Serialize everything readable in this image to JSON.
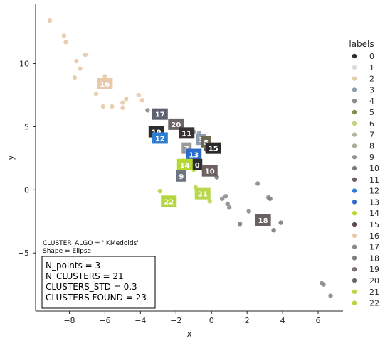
{
  "chart_data": {
    "type": "scatter",
    "xlabel": "x",
    "ylabel": "y",
    "xlim": [
      -9.9,
      7.4
    ],
    "ylim": [
      -9.6,
      14.7
    ],
    "xticks": [
      -8,
      -6,
      -4,
      -2,
      0,
      2,
      4,
      6
    ],
    "yticks": [
      -5,
      0,
      5,
      10
    ],
    "tick_labels_x": [
      "−8",
      "−6",
      "−4",
      "−2",
      "0",
      "2",
      "4",
      "6"
    ],
    "tick_labels_y": [
      "−5",
      "0",
      "5",
      "10"
    ],
    "grid": false,
    "legend": {
      "title": "labels",
      "placement": "right",
      "entries": [
        "0",
        "1",
        "2",
        "3",
        "4",
        "5",
        "6",
        "7",
        "8",
        "9",
        "10",
        "11",
        "12",
        "13",
        "14",
        "15",
        "16",
        "17",
        "18",
        "19",
        "20",
        "21",
        "22"
      ],
      "colors": [
        "#2d2d2d",
        "#dcdcdc",
        "#e6cfa6",
        "#8e9bb0",
        "#8c8c8c",
        "#8a8650",
        "#c3d27e",
        "#b2b2a6",
        "#a8ad98",
        "#8e9a8e",
        "#7a7a7a",
        "#6c6060",
        "#2f7dd1",
        "#2b6cc8",
        "#b5d930",
        "#5a4a4a",
        "#e8c9a8",
        "#8a8a8a",
        "#7e7e7e",
        "#7b6f6f",
        "#6e6666",
        "#b9d74a",
        "#b3d63e"
      ]
    },
    "points": [
      {
        "x": -9.1,
        "y": 13.4,
        "label": "16"
      },
      {
        "x": -8.3,
        "y": 12.2,
        "label": "16"
      },
      {
        "x": -8.2,
        "y": 11.7,
        "label": "16"
      },
      {
        "x": -7.1,
        "y": 10.7,
        "label": "16"
      },
      {
        "x": -7.6,
        "y": 10.2,
        "label": "16"
      },
      {
        "x": -7.4,
        "y": 9.6,
        "label": "16"
      },
      {
        "x": -7.7,
        "y": 8.9,
        "label": "16"
      },
      {
        "x": -6.0,
        "y": 9.0,
        "label": "16"
      },
      {
        "x": -6.5,
        "y": 7.6,
        "label": "16"
      },
      {
        "x": -6.1,
        "y": 6.6,
        "label": "16"
      },
      {
        "x": -5.6,
        "y": 6.6,
        "label": "16"
      },
      {
        "x": -5.0,
        "y": 6.9,
        "label": "16"
      },
      {
        "x": -4.8,
        "y": 7.2,
        "label": "16"
      },
      {
        "x": -4.1,
        "y": 7.5,
        "label": "16"
      },
      {
        "x": -3.9,
        "y": 7.1,
        "label": "16"
      },
      {
        "x": -5.0,
        "y": 6.5,
        "label": "16"
      },
      {
        "x": -3.6,
        "y": 6.3,
        "label": "17"
      },
      {
        "x": -3.0,
        "y": 5.8,
        "label": "17"
      },
      {
        "x": -2.3,
        "y": 5.3,
        "label": "20"
      },
      {
        "x": -1.6,
        "y": 4.7,
        "label": "11"
      },
      {
        "x": -1.0,
        "y": 4.6,
        "label": "3"
      },
      {
        "x": -0.7,
        "y": 4.5,
        "label": "3"
      },
      {
        "x": -0.5,
        "y": 3.9,
        "label": "5"
      },
      {
        "x": -0.3,
        "y": 3.2,
        "label": "15"
      },
      {
        "x": -1.3,
        "y": 3.1,
        "label": "7"
      },
      {
        "x": -1.0,
        "y": 2.8,
        "label": "13"
      },
      {
        "x": -1.6,
        "y": 2.3,
        "label": "14"
      },
      {
        "x": -0.9,
        "y": 2.0,
        "label": "0"
      },
      {
        "x": -1.0,
        "y": 1.6,
        "label": "14"
      },
      {
        "x": -0.3,
        "y": 1.5,
        "label": "10"
      },
      {
        "x": 0.3,
        "y": 1.0,
        "label": "10"
      },
      {
        "x": -1.6,
        "y": 1.2,
        "label": "9"
      },
      {
        "x": -2.8,
        "y": 4.3,
        "label": "12"
      },
      {
        "x": -3.2,
        "y": 4.7,
        "label": "19"
      },
      {
        "x": -2.9,
        "y": -0.1,
        "label": "22"
      },
      {
        "x": -2.4,
        "y": -0.9,
        "label": "22"
      },
      {
        "x": -0.9,
        "y": 0.2,
        "label": "21"
      },
      {
        "x": -0.5,
        "y": -0.3,
        "label": "21"
      },
      {
        "x": -0.1,
        "y": -0.9,
        "label": "21"
      },
      {
        "x": 0.6,
        "y": -0.7,
        "label": "4"
      },
      {
        "x": 0.8,
        "y": -0.5,
        "label": "4"
      },
      {
        "x": 0.9,
        "y": -1.1,
        "label": "4"
      },
      {
        "x": 1.0,
        "y": -1.4,
        "label": "4"
      },
      {
        "x": 2.1,
        "y": -1.7,
        "label": "4"
      },
      {
        "x": 2.6,
        "y": 0.5,
        "label": "4"
      },
      {
        "x": 3.2,
        "y": -0.6,
        "label": "4"
      },
      {
        "x": 3.3,
        "y": -0.7,
        "label": "18"
      },
      {
        "x": 1.6,
        "y": -2.7,
        "label": "18"
      },
      {
        "x": 3.0,
        "y": -2.4,
        "label": "18"
      },
      {
        "x": 3.9,
        "y": -2.6,
        "label": "18"
      },
      {
        "x": 3.5,
        "y": -3.2,
        "label": "18"
      },
      {
        "x": 6.2,
        "y": -7.4,
        "label": "4"
      },
      {
        "x": 6.3,
        "y": -7.5,
        "label": "4"
      },
      {
        "x": 6.7,
        "y": -8.4,
        "label": "4"
      }
    ],
    "cluster_labels": [
      {
        "text": "16",
        "x": -6.0,
        "y": 8.4,
        "color": "#e8c9a8"
      },
      {
        "text": "17",
        "x": -2.9,
        "y": 6.0,
        "color": "#5e6070"
      },
      {
        "text": "20",
        "x": -2.0,
        "y": 5.2,
        "color": "#6e6666"
      },
      {
        "text": "19",
        "x": -3.1,
        "y": 4.6,
        "color": "#2d2d2d"
      },
      {
        "text": "11",
        "x": -1.4,
        "y": 4.5,
        "color": "#3a3232"
      },
      {
        "text": "12",
        "x": -2.9,
        "y": 4.1,
        "color": "#2f7dd1"
      },
      {
        "text": "3",
        "x": -0.6,
        "y": 4.0,
        "color": "#8e9bb0"
      },
      {
        "text": "5",
        "x": -0.3,
        "y": 3.8,
        "color": "#6e6a52"
      },
      {
        "text": "7",
        "x": -1.4,
        "y": 3.3,
        "color": "#9a9a9a"
      },
      {
        "text": "15",
        "x": 0.1,
        "y": 3.3,
        "color": "#2a2a2a"
      },
      {
        "text": "13",
        "x": -1.0,
        "y": 2.8,
        "color": "#2b6cc8"
      },
      {
        "text": "0",
        "x": -0.8,
        "y": 2.0,
        "color": "#2d2d2d"
      },
      {
        "text": "14",
        "x": -1.5,
        "y": 2.0,
        "color": "#b5d930"
      },
      {
        "text": "9",
        "x": -1.7,
        "y": 1.1,
        "color": "#6e7482"
      },
      {
        "text": "10",
        "x": -0.1,
        "y": 1.5,
        "color": "#6c6060"
      },
      {
        "text": "21",
        "x": -0.5,
        "y": -0.3,
        "color": "#b9d74a"
      },
      {
        "text": "22",
        "x": -2.4,
        "y": -0.9,
        "color": "#b3d63e"
      },
      {
        "text": "18",
        "x": 2.9,
        "y": -2.4,
        "color": "#6a6262"
      }
    ],
    "annotations": {
      "algo_line": "CLUSTER_ALGO = ' KMedoids'",
      "shape_line": "Shape = Elipse",
      "box_lines": [
        "N_points = 3",
        "N_CLUSTERS = 21",
        "CLUSTERS_STD = 0.3",
        "CLUSTERS FOUND = 23"
      ]
    }
  }
}
